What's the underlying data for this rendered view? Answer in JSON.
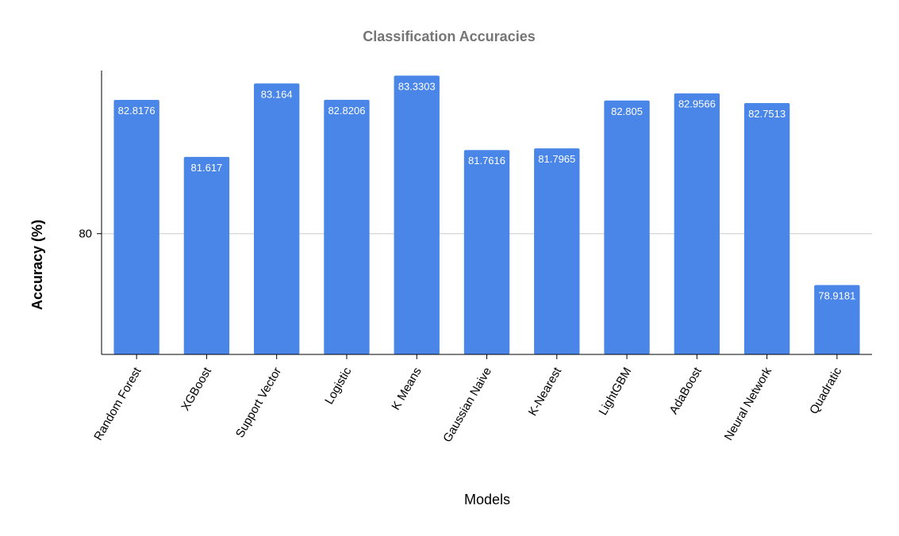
{
  "chart_data": {
    "type": "bar",
    "title": "Classification Accuracies",
    "xlabel": "Models",
    "ylabel": "Accuracy (%)",
    "categories": [
      "Random Forest",
      "XGBoost",
      "Support Vector",
      "Logistic",
      "K Means",
      "Gaussian Naive",
      "K-Nearest",
      "LightGBM",
      "AdaBoost",
      "Neural Network",
      "Quadratic"
    ],
    "values": [
      82.8176,
      81.617,
      83.164,
      82.8206,
      83.3303,
      81.7616,
      81.7965,
      82.805,
      82.9566,
      82.7513,
      78.9181
    ],
    "data_labels": [
      "82.8176",
      "81.617",
      "83.164",
      "82.8206",
      "83.3303",
      "81.7616",
      "81.7965",
      "82.805",
      "82.9566",
      "82.7513",
      "78.9181"
    ],
    "ylim": [
      77.4565,
      83.4358
    ],
    "yticks": [
      80
    ],
    "ytick_labels": [
      "80"
    ],
    "grid": true,
    "legend": "none",
    "colors": {
      "bar": "#4a86e8",
      "title": "#757575",
      "text": "#000000",
      "data_label": "#ffffff",
      "grid": "#cccccc",
      "axis": "#000000"
    }
  }
}
